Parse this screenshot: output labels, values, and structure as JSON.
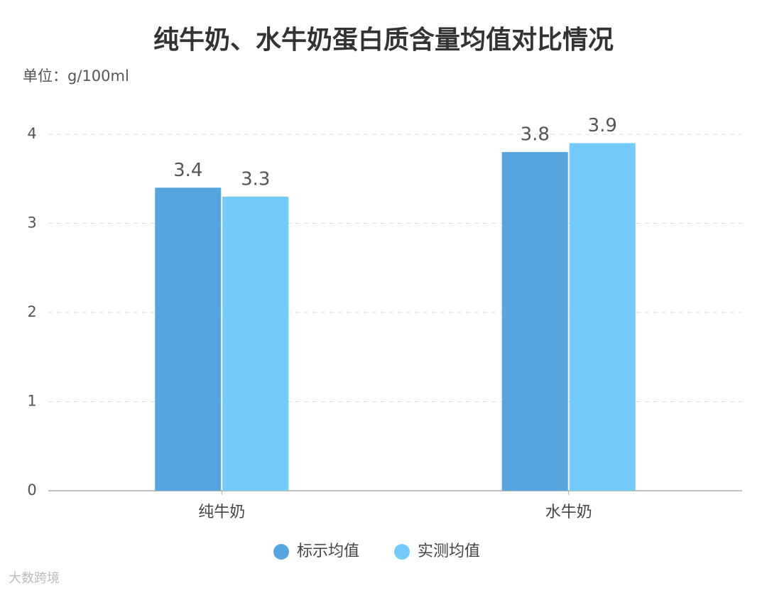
{
  "chart_data": {
    "type": "bar",
    "title": "纯牛奶、水牛奶蛋白质含量均值对比情况",
    "subtitle": "单位：g/100ml",
    "categories": [
      "纯牛奶",
      "水牛奶"
    ],
    "series": [
      {
        "name": "标示均值",
        "color": "#56a5de",
        "values": [
          3.4,
          3.8
        ]
      },
      {
        "name": "实测均值",
        "color": "#74cbfb",
        "values": [
          3.3,
          3.9
        ]
      }
    ],
    "ylim": [
      0,
      4
    ],
    "yticks": [
      0,
      1,
      2,
      3,
      4
    ],
    "grid": true,
    "legend": "bottom",
    "source_mark": "大数跨境"
  }
}
